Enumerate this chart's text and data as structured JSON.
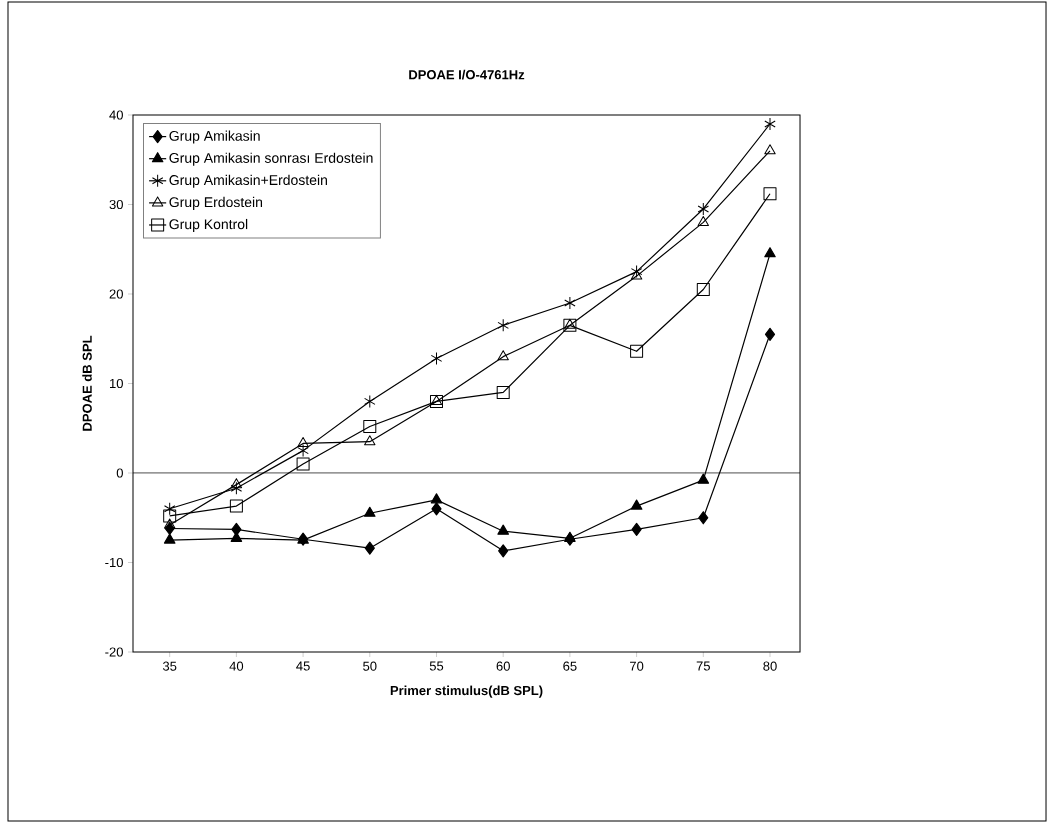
{
  "chart_data": {
    "type": "line",
    "title": "DPOAE I/O-4761Hz",
    "xlabel": "Primer stimulus(dB SPL)",
    "ylabel": "DPOAE dB SPL",
    "categories": [
      "35",
      "40",
      "45",
      "50",
      "55",
      "60",
      "65",
      "70",
      "75",
      "80"
    ],
    "series": [
      {
        "name": "Grup Amikasin",
        "color": "#000000",
        "marker": "diamond",
        "values": [
          -6.2,
          -6.3,
          -7.4,
          -8.4,
          -4,
          -8.7,
          -7.4,
          -6.3,
          -5,
          15.5
        ]
      },
      {
        "name": "Grup Amikasin sonrası Erdostein",
        "color": "#000000",
        "marker": "triangle",
        "values": [
          -7.5,
          -7.3,
          -7.5,
          -4.5,
          -3,
          -6.5,
          -7.3,
          -3.7,
          -0.8,
          24.5
        ]
      },
      {
        "name": "Grup Amikasin+Erdostein",
        "color": "#000000",
        "marker": "cross",
        "values": [
          -4,
          -1.7,
          2.5,
          8,
          12.8,
          16.5,
          19,
          22.5,
          29.5,
          39
        ]
      },
      {
        "name": "Grup Erdostein",
        "color": "#000000",
        "marker": "triangle-open",
        "values": [
          -5.8,
          -1.3,
          3.3,
          3.5,
          8,
          13,
          16.5,
          22,
          28,
          36
        ]
      },
      {
        "name": "Grup Kontrol",
        "color": "#000000",
        "marker": "square",
        "values": [
          -4.8,
          -3.7,
          1,
          5.2,
          8,
          9,
          16.5,
          13.6,
          20.5,
          31.2
        ]
      }
    ],
    "ylim": [
      -20,
      40
    ],
    "yticks": [
      -20,
      -10,
      0,
      10,
      20,
      30,
      40
    ],
    "ref_lines": [
      {
        "axis": "y",
        "value": 0
      }
    ],
    "grid": false,
    "legend": "top left",
    "line_style": "solid"
  }
}
